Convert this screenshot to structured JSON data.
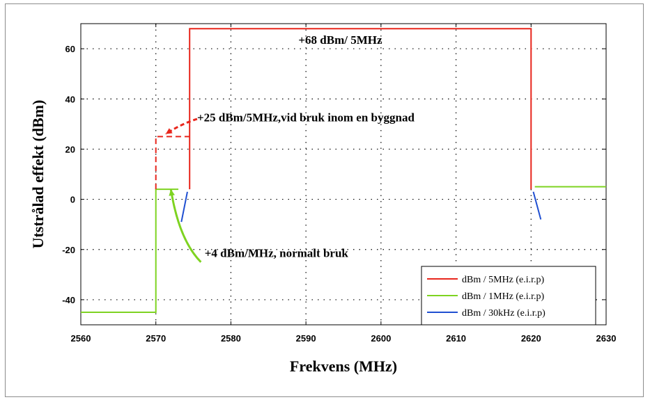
{
  "chart_data": {
    "type": "line",
    "xlabel": "Frekvens (MHz)",
    "ylabel": "Utstrålad effekt (dBm)",
    "xlim": [
      2560,
      2630
    ],
    "ylim": [
      -50,
      70
    ],
    "xticks": [
      2560,
      2570,
      2580,
      2590,
      2600,
      2610,
      2620,
      2630
    ],
    "yticks": [
      -40,
      -20,
      0,
      20,
      40,
      60
    ],
    "grid": "dotted",
    "legend_position": "bottom-right",
    "series": [
      {
        "name": "dBm / 5MHz (e.i.r.p)",
        "color": "#e8261c",
        "points": [
          [
            2574.5,
            4
          ],
          [
            2574.5,
            68
          ],
          [
            2620,
            68
          ],
          [
            2620,
            4
          ]
        ]
      },
      {
        "name": "dBm / 1MHz (e.i.r.p)",
        "color": "#7ed321",
        "points": [
          [
            2560,
            -45
          ],
          [
            2570,
            -45
          ],
          [
            2570,
            4
          ],
          [
            2573,
            4
          ]
        ],
        "extra_segments": [
          [
            [
              2620.5,
              5
            ],
            [
              2630,
              5
            ]
          ]
        ]
      },
      {
        "name": "dBm / 30kHz (e.i.r.p)",
        "color": "#1f4fd1",
        "segments": [
          [
            [
              2574.2,
              3
            ],
            [
              2573.4,
              -9
            ]
          ],
          [
            [
              2620.3,
              3
            ],
            [
              2621.3,
              -8
            ]
          ]
        ]
      }
    ],
    "indoor_limit": {
      "color": "#e8261c",
      "style": "dashed",
      "points": [
        [
          2570,
          4
        ],
        [
          2570,
          25
        ],
        [
          2574.5,
          25
        ]
      ]
    },
    "annotations": [
      {
        "text": "+68 dBm/ 5MHz",
        "x": 2589,
        "y": 62
      },
      {
        "text": "+25 dBm/5MHz,vid bruk inom en byggnad",
        "x": 2575.5,
        "y": 31
      },
      {
        "text": "+4 dBm/MHz, normalt bruk",
        "x": 2576.5,
        "y": -23
      }
    ],
    "arrows": [
      {
        "color": "#e8261c",
        "style": "dashed",
        "from": [
          2575.5,
          32
        ],
        "to": [
          2571.3,
          26
        ]
      },
      {
        "color": "#7ed321",
        "style": "solid",
        "from": [
          2576,
          -25
        ],
        "to": [
          2572,
          4
        ]
      }
    ]
  }
}
